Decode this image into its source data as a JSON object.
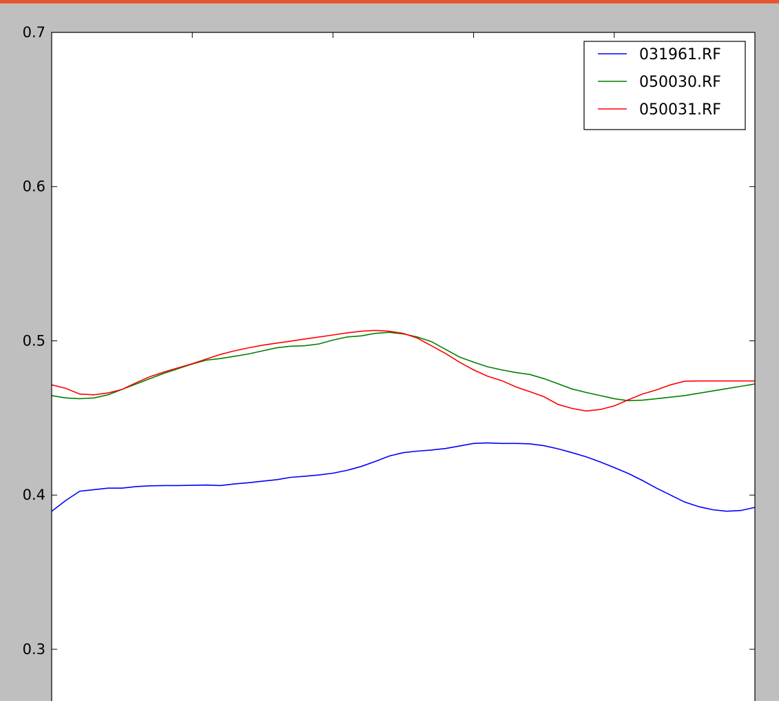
{
  "page": {
    "accent_color": "#e4572e",
    "background_color": "#bfbfbf"
  },
  "chart_data": {
    "type": "line",
    "title": "",
    "xlabel": "",
    "ylabel": "",
    "ylim": [
      0.262,
      0.7
    ],
    "xlim": [
      0,
      1
    ],
    "yticks": [
      0.3,
      0.4,
      0.5,
      0.6,
      0.7
    ],
    "ytick_labels": [
      "0.3",
      "0.4",
      "0.5",
      "0.6",
      "0.7"
    ],
    "grid": false,
    "legend_position": "top-right",
    "series": [
      {
        "name": "031961.RF",
        "color": "#0000ff",
        "x": [
          0,
          0.02,
          0.04,
          0.06,
          0.08,
          0.1,
          0.12,
          0.14,
          0.16,
          0.18,
          0.2,
          0.22,
          0.24,
          0.26,
          0.28,
          0.3,
          0.32,
          0.34,
          0.36,
          0.38,
          0.4,
          0.42,
          0.44,
          0.46,
          0.48,
          0.5,
          0.52,
          0.54,
          0.56,
          0.58,
          0.6,
          0.62,
          0.64,
          0.66,
          0.68,
          0.7,
          0.72,
          0.74,
          0.76,
          0.78,
          0.8,
          0.82,
          0.84,
          0.86,
          0.88,
          0.9,
          0.92,
          0.94,
          0.96,
          0.98,
          1.0
        ],
        "y": [
          0.3895,
          0.3965,
          0.4025,
          0.4035,
          0.4045,
          0.4045,
          0.4055,
          0.406,
          0.4062,
          0.4062,
          0.4063,
          0.4065,
          0.4062,
          0.4072,
          0.408,
          0.409,
          0.41,
          0.4115,
          0.4122,
          0.413,
          0.4142,
          0.416,
          0.4185,
          0.4218,
          0.4253,
          0.4275,
          0.4285,
          0.4292,
          0.4302,
          0.4318,
          0.4335,
          0.4338,
          0.4335,
          0.4335,
          0.4332,
          0.432,
          0.43,
          0.4275,
          0.4248,
          0.4215,
          0.4178,
          0.414,
          0.4095,
          0.4045,
          0.4,
          0.3955,
          0.3925,
          0.3905,
          0.3895,
          0.39,
          0.392
        ]
      },
      {
        "name": "050030.RF",
        "color": "#008000",
        "x": [
          0,
          0.02,
          0.04,
          0.06,
          0.08,
          0.1,
          0.12,
          0.14,
          0.16,
          0.18,
          0.2,
          0.22,
          0.24,
          0.26,
          0.28,
          0.3,
          0.32,
          0.34,
          0.36,
          0.38,
          0.4,
          0.42,
          0.44,
          0.46,
          0.48,
          0.5,
          0.52,
          0.54,
          0.56,
          0.58,
          0.6,
          0.62,
          0.64,
          0.66,
          0.68,
          0.7,
          0.72,
          0.74,
          0.76,
          0.78,
          0.8,
          0.82,
          0.84,
          0.86,
          0.88,
          0.9,
          0.92,
          0.94,
          0.96,
          0.98,
          1.0
        ],
        "y": [
          0.4645,
          0.463,
          0.4625,
          0.463,
          0.465,
          0.4685,
          0.472,
          0.4755,
          0.479,
          0.482,
          0.485,
          0.4875,
          0.4885,
          0.49,
          0.4915,
          0.4935,
          0.4955,
          0.4965,
          0.4968,
          0.498,
          0.5005,
          0.5025,
          0.5032,
          0.5048,
          0.5055,
          0.5045,
          0.5025,
          0.4995,
          0.4945,
          0.4895,
          0.4862,
          0.4832,
          0.4812,
          0.4795,
          0.4782,
          0.4755,
          0.4722,
          0.4688,
          0.4665,
          0.4645,
          0.4625,
          0.4612,
          0.4615,
          0.4625,
          0.4635,
          0.4645,
          0.466,
          0.4675,
          0.469,
          0.4705,
          0.472
        ]
      },
      {
        "name": "050031.RF",
        "color": "#ff0000",
        "x": [
          0,
          0.02,
          0.04,
          0.06,
          0.08,
          0.1,
          0.12,
          0.14,
          0.16,
          0.18,
          0.2,
          0.22,
          0.24,
          0.26,
          0.28,
          0.3,
          0.32,
          0.34,
          0.36,
          0.38,
          0.4,
          0.42,
          0.44,
          0.46,
          0.48,
          0.5,
          0.52,
          0.54,
          0.56,
          0.58,
          0.6,
          0.62,
          0.64,
          0.66,
          0.68,
          0.7,
          0.72,
          0.74,
          0.76,
          0.78,
          0.8,
          0.82,
          0.84,
          0.86,
          0.88,
          0.9,
          0.92,
          0.94,
          0.96,
          0.98,
          1.0
        ],
        "y": [
          0.4715,
          0.4692,
          0.4655,
          0.465,
          0.4662,
          0.4685,
          0.4728,
          0.4768,
          0.4798,
          0.4825,
          0.4852,
          0.4882,
          0.4912,
          0.4935,
          0.4955,
          0.4972,
          0.4985,
          0.4998,
          0.5012,
          0.5025,
          0.5038,
          0.5052,
          0.5062,
          0.5068,
          0.5062,
          0.5048,
          0.5018,
          0.4968,
          0.4918,
          0.4862,
          0.4812,
          0.477,
          0.4742,
          0.4702,
          0.467,
          0.4638,
          0.4588,
          0.4562,
          0.4545,
          0.4555,
          0.4578,
          0.4618,
          0.4655,
          0.4682,
          0.4715,
          0.4738,
          0.474,
          0.474,
          0.474,
          0.474,
          0.474
        ]
      }
    ]
  }
}
